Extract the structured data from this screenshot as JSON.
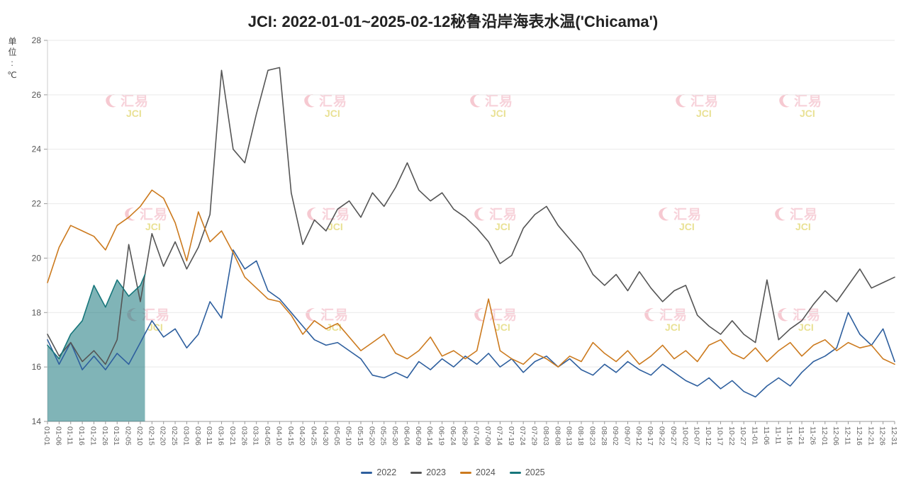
{
  "chart_data": {
    "type": "line",
    "title": "JCI: 2022-01-01~2025-02-12秘鲁沿岸海表水温('Chicama')",
    "unit_label": "单位:℃",
    "ylim": [
      14,
      28
    ],
    "yticks": [
      14,
      16,
      18,
      20,
      22,
      24,
      26,
      28
    ],
    "grid": true,
    "legend_position": "bottom",
    "x_tick_interval_days": 5,
    "categories": [
      "01-01",
      "01-06",
      "01-11",
      "01-16",
      "01-21",
      "01-26",
      "01-31",
      "02-05",
      "02-10",
      "02-15",
      "02-20",
      "02-25",
      "03-01",
      "03-06",
      "03-11",
      "03-16",
      "03-21",
      "03-26",
      "03-31",
      "04-05",
      "04-10",
      "04-15",
      "04-20",
      "04-25",
      "04-30",
      "05-05",
      "05-10",
      "05-15",
      "05-20",
      "05-25",
      "05-30",
      "06-04",
      "06-09",
      "06-14",
      "06-19",
      "06-24",
      "06-29",
      "07-04",
      "07-09",
      "07-14",
      "07-19",
      "07-24",
      "07-29",
      "08-03",
      "08-08",
      "08-13",
      "08-18",
      "08-23",
      "08-28",
      "09-02",
      "09-07",
      "09-12",
      "09-17",
      "09-22",
      "09-27",
      "10-02",
      "10-07",
      "10-12",
      "10-17",
      "10-22",
      "10-27",
      "11-01",
      "11-06",
      "11-11",
      "11-16",
      "11-21",
      "11-26",
      "12-01",
      "12-06",
      "12-11",
      "12-16",
      "12-21",
      "12-26",
      "12-31"
    ],
    "series": [
      {
        "name": "2022",
        "color": "#2e5f9e",
        "values": [
          17.0,
          16.1,
          16.9,
          15.9,
          16.4,
          15.9,
          16.5,
          16.1,
          16.9,
          17.7,
          17.1,
          17.4,
          16.7,
          17.2,
          18.4,
          17.8,
          20.3,
          19.6,
          19.9,
          18.8,
          18.5,
          18.0,
          17.5,
          17.0,
          16.8,
          16.9,
          16.6,
          16.3,
          15.7,
          15.6,
          15.8,
          15.6,
          16.2,
          15.9,
          16.3,
          16.0,
          16.4,
          16.1,
          16.5,
          16.0,
          16.3,
          15.8,
          16.2,
          16.4,
          16.0,
          16.3,
          15.9,
          15.7,
          16.1,
          15.8,
          16.2,
          15.9,
          15.7,
          16.1,
          15.8,
          15.5,
          15.3,
          15.6,
          15.2,
          15.5,
          15.1,
          14.9,
          15.3,
          15.6,
          15.3,
          15.8,
          16.2,
          16.4,
          16.7,
          18.0,
          17.2,
          16.8,
          17.4,
          16.2
        ]
      },
      {
        "name": "2023",
        "color": "#555555",
        "values": [
          17.2,
          16.4,
          16.9,
          16.2,
          16.6,
          16.1,
          17.0,
          20.5,
          18.4,
          20.9,
          19.7,
          20.6,
          19.6,
          20.4,
          21.6,
          26.9,
          24.0,
          23.5,
          25.3,
          26.9,
          27.0,
          22.4,
          20.5,
          21.4,
          21.0,
          21.8,
          22.1,
          21.5,
          22.4,
          21.9,
          22.6,
          23.5,
          22.5,
          22.1,
          22.4,
          21.8,
          21.5,
          21.1,
          20.6,
          19.8,
          20.1,
          21.1,
          21.6,
          21.9,
          21.2,
          20.7,
          20.2,
          19.4,
          19.0,
          19.4,
          18.8,
          19.5,
          18.9,
          18.4,
          18.8,
          19.0,
          17.9,
          17.5,
          17.2,
          17.7,
          17.2,
          16.9,
          19.2,
          17.0,
          17.4,
          17.7,
          18.3,
          18.8,
          18.4,
          19.0,
          19.6,
          18.9,
          19.1,
          19.3
        ]
      },
      {
        "name": "2024",
        "color": "#cc7a1e",
        "values": [
          19.1,
          20.4,
          21.2,
          21.0,
          20.8,
          20.3,
          21.2,
          21.5,
          21.9,
          22.5,
          22.2,
          21.3,
          19.9,
          21.7,
          20.6,
          21.0,
          20.2,
          19.3,
          18.9,
          18.5,
          18.4,
          17.9,
          17.2,
          17.7,
          17.4,
          17.6,
          17.1,
          16.6,
          16.9,
          17.2,
          16.5,
          16.3,
          16.6,
          17.1,
          16.4,
          16.6,
          16.3,
          16.6,
          18.5,
          16.6,
          16.3,
          16.1,
          16.5,
          16.3,
          16.0,
          16.4,
          16.2,
          16.9,
          16.5,
          16.2,
          16.6,
          16.1,
          16.4,
          16.8,
          16.3,
          16.6,
          16.2,
          16.8,
          17.0,
          16.5,
          16.3,
          16.7,
          16.2,
          16.6,
          16.9,
          16.4,
          16.8,
          17.0,
          16.6,
          16.9,
          16.7,
          16.8,
          16.3,
          16.1
        ]
      },
      {
        "name": "2025",
        "color": "#17767b",
        "fill": true,
        "fill_opacity": 0.55,
        "x_indices": [
          0,
          1,
          2,
          3,
          4,
          5,
          6,
          7,
          8,
          8.4
        ],
        "values": [
          16.8,
          16.3,
          17.2,
          17.7,
          19.0,
          18.2,
          19.2,
          18.6,
          19.0,
          19.4
        ]
      }
    ],
    "watermark": {
      "logo_cn": "汇易",
      "logo_en": "JCI"
    }
  }
}
